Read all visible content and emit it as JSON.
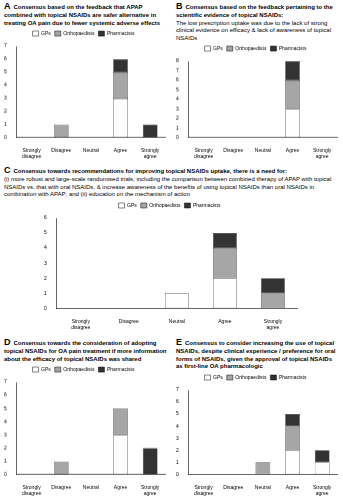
{
  "chart_data": [
    {
      "panel": "A",
      "type": "bar",
      "title": "Consensus based on the feedback that APAP combined with topical NSAIDs are safer alternative in treating OA pain due to fewer systemic adverse effects",
      "categories": [
        "Strongly disagree",
        "Disagree",
        "Neutral",
        "Agree",
        "Strongly agree"
      ],
      "series": [
        {
          "name": "GPs",
          "color": "#ffffff",
          "values": [
            0,
            0,
            0,
            3,
            0
          ]
        },
        {
          "name": "Orthopaedists",
          "color": "#a6a6a6",
          "values": [
            0,
            1,
            0,
            2,
            0
          ]
        },
        {
          "name": "Pharmacists",
          "color": "#333333",
          "values": [
            0,
            0,
            0,
            1,
            1
          ]
        }
      ],
      "ylim": [
        0,
        7
      ],
      "yticks": [
        0,
        1,
        2,
        3,
        4,
        5,
        6,
        7
      ],
      "stacked": true,
      "grid": false,
      "legend": "top"
    },
    {
      "panel": "B",
      "type": "bar",
      "title": "Consensus based on the feedback pertaining to the scientific evidence of topical NSAIDs:",
      "subtitle": "The low prescription uptake was due to the lack of strong clinical evidence on efficacy & lack of awareness of topical NSAIDs",
      "categories": [
        "Strongly disagree",
        "Disagree",
        "Neutral",
        "Agree",
        "Strongly agree"
      ],
      "series": [
        {
          "name": "GPs",
          "color": "#ffffff",
          "values": [
            0,
            0,
            0,
            3,
            0
          ]
        },
        {
          "name": "Orthopaedists",
          "color": "#a6a6a6",
          "values": [
            0,
            0,
            0,
            3,
            0
          ]
        },
        {
          "name": "Pharmacists",
          "color": "#333333",
          "values": [
            0,
            0,
            0,
            2,
            0
          ]
        }
      ],
      "ylim": [
        0,
        8
      ],
      "yticks": [
        0,
        1,
        2,
        3,
        4,
        5,
        6,
        7,
        8
      ],
      "stacked": true,
      "grid": false,
      "legend": "top"
    },
    {
      "panel": "C",
      "type": "bar",
      "title": "Consensus towards recommendations for improving topical NSAIDs uptake, there is a need for:",
      "subtitle": "(i) more robust and large-scale randomised trials, including the comparison between combined therapy of APAP with topical NSAIDs vs. that with oral NSAIDs, & increase awareness of the benefits of using topical NSAIDs than oral NSAIDs in combination with APAP; and (ii) education on the mechanism of action",
      "categories": [
        "Strongly disagree",
        "Disagree",
        "Neutral",
        "Agree",
        "Strongly agree"
      ],
      "series": [
        {
          "name": "GPs",
          "color": "#ffffff",
          "values": [
            0,
            0,
            1,
            2,
            0
          ]
        },
        {
          "name": "Orthopaedists",
          "color": "#a6a6a6",
          "values": [
            0,
            0,
            0,
            2,
            1
          ]
        },
        {
          "name": "Pharmacists",
          "color": "#333333",
          "values": [
            0,
            0,
            0,
            1,
            1
          ]
        }
      ],
      "ylim": [
        0,
        6
      ],
      "yticks": [
        0,
        1,
        2,
        3,
        4,
        5,
        6
      ],
      "stacked": true,
      "grid": false,
      "legend": "top"
    },
    {
      "panel": "D",
      "type": "bar",
      "title": "Consensus towards the consideration of adopting topical NSAIDs for OA pain treatment if more information about the efficacy of topical NSAIDs was shared",
      "categories": [
        "Strongly disagree",
        "Disagree",
        "Neutral",
        "Agree",
        "Strongly agree"
      ],
      "series": [
        {
          "name": "GPs",
          "color": "#ffffff",
          "values": [
            0,
            0,
            0,
            3,
            0
          ]
        },
        {
          "name": "Orthopaedists",
          "color": "#a6a6a6",
          "values": [
            0,
            1,
            0,
            2,
            0
          ]
        },
        {
          "name": "Pharmacists",
          "color": "#333333",
          "values": [
            0,
            0,
            0,
            0,
            2
          ]
        }
      ],
      "ylim": [
        0,
        7
      ],
      "yticks": [
        0,
        1,
        2,
        3,
        4,
        5,
        6,
        7
      ],
      "stacked": true,
      "grid": false,
      "legend": "top"
    },
    {
      "panel": "E",
      "type": "bar",
      "title": "Consensus to consider increasing the use of topical NSAIDs, despite clinical experience / preference for oral forms of NSAIDs, given the approval of topical NSAIDs as first-line OA pharmacologic",
      "categories": [
        "Strongly disagree",
        "Disagree",
        "Neutral",
        "Agree",
        "Strongly agree"
      ],
      "series": [
        {
          "name": "GPs",
          "color": "#ffffff",
          "values": [
            0,
            0,
            0,
            2,
            1
          ]
        },
        {
          "name": "Orthopaedists",
          "color": "#a6a6a6",
          "values": [
            0,
            0,
            1,
            2,
            0
          ]
        },
        {
          "name": "Pharmacists",
          "color": "#333333",
          "values": [
            0,
            0,
            0,
            1,
            1
          ]
        }
      ],
      "ylim": [
        0,
        7
      ],
      "yticks": [
        0,
        1,
        2,
        3,
        4,
        5,
        6,
        7
      ],
      "stacked": true,
      "grid": false,
      "legend": "top"
    }
  ]
}
